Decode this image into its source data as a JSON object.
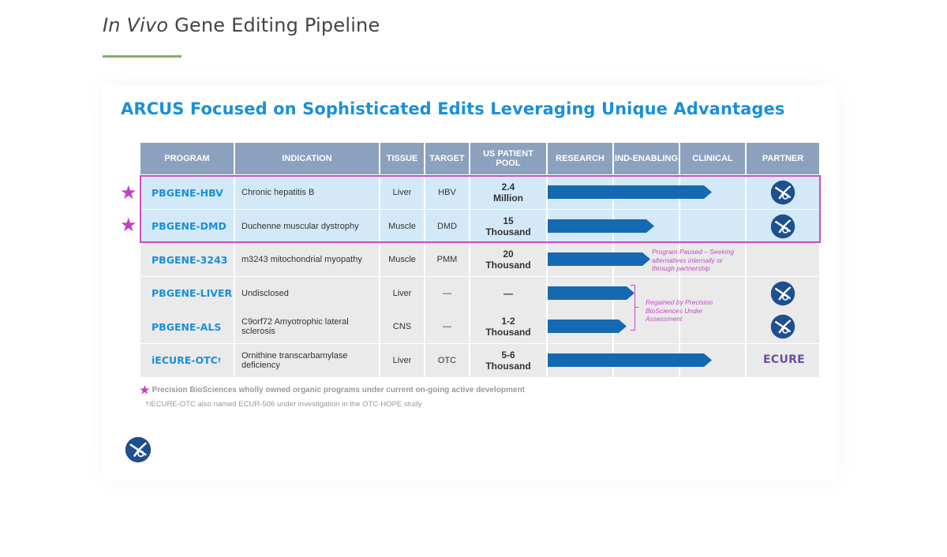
{
  "header": {
    "title_italic": "In Vivo",
    "title_rest": " Gene Editing Pipeline"
  },
  "slide": {
    "title": "ARCUS Focused on Sophisticated Edits Leveraging Unique Advantages"
  },
  "table": {
    "headers": {
      "program": "PROGRAM",
      "indication": "INDICATION",
      "tissue": "TISSUE",
      "target": "TARGET",
      "pool": "US PATIENT POOL",
      "research": "RESEARCH",
      "ind": "IND-ENABLING",
      "clinical": "CLINICAL",
      "partner": "PARTNER"
    },
    "rows": [
      {
        "program": "PBGENE-HBV",
        "indication": "Chronic hepatitis B",
        "tissue": "Liver",
        "target": "HBV",
        "pool_num": "2.4",
        "pool_unit": "Million",
        "stage_progress": 0.79,
        "partner": "precision-logo",
        "starred": true
      },
      {
        "program": "PBGENE-DMD",
        "indication": "Duchenne muscular dystrophy",
        "tissue": "Muscle",
        "target": "DMD",
        "pool_num": "15",
        "pool_unit": "Thousand",
        "stage_progress": 0.5,
        "partner": "precision-logo",
        "starred": true
      },
      {
        "program": "PBGENE-3243",
        "indication": "m3243 mitochondrial myopathy",
        "tissue": "Muscle",
        "target": "PMM",
        "pool_num": "20",
        "pool_unit": "Thousand",
        "stage_progress": 0.48,
        "partner": "",
        "starred": false
      },
      {
        "program": "PBGENE-LIVER",
        "indication": "Undisclosed",
        "tissue": "Liver",
        "target": "—",
        "pool_num": "—",
        "pool_unit": "",
        "stage_progress": 0.4,
        "partner": "precision-logo",
        "starred": false
      },
      {
        "program": "PBGENE-ALS",
        "indication": "C9orf72 Amyotrophic lateral sclerosis",
        "tissue": "CNS",
        "target": "—",
        "pool_num": "1-2",
        "pool_unit": "Thousand",
        "stage_progress": 0.36,
        "partner": "precision-logo",
        "starred": false
      },
      {
        "program": "iECURE-OTC",
        "program_sup": "†",
        "indication": "Ornithine transcarbamylase deficiency",
        "tissue": "Liver",
        "target": "OTC",
        "pool_num": "5-6",
        "pool_unit": "Thousand",
        "stage_progress": 0.79,
        "partner": "ecure-logo",
        "starred": false
      }
    ],
    "partner_ecure_text": "ECURE"
  },
  "notes": {
    "paused": "Program Paused – Seeking alternatives internally or through partnership",
    "regained": "Regained by Precision BioSciences Under Assessment"
  },
  "footnotes": {
    "star_note": "Precision BioSciences wholly owned organic programs under current on-going active development",
    "dagger_note": "†iECURE-OTC also named ECUR-506 under investigation in the OTC-HOPE study"
  },
  "colors": {
    "header_bg": "#8ca1be",
    "row_highlight": "#d3e9f8",
    "row_default": "#eaeaea",
    "bar": "#1569b0",
    "program_text": "#1a8fd8",
    "highlight_border": "#c84fc2",
    "title_rule": "#7fb064"
  }
}
